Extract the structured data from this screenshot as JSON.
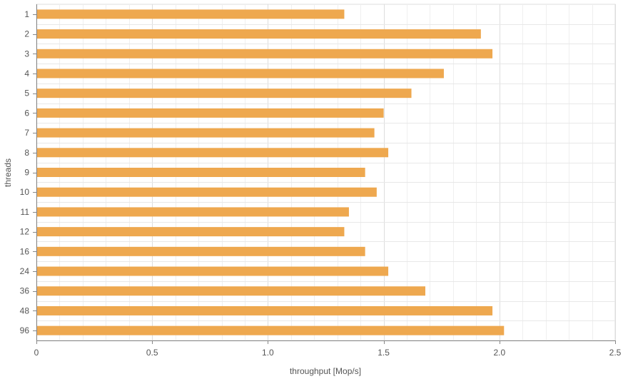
{
  "chart_data": {
    "type": "bar",
    "orientation": "horizontal",
    "categories": [
      "1",
      "2",
      "3",
      "4",
      "5",
      "6",
      "7",
      "8",
      "9",
      "10",
      "11",
      "12",
      "16",
      "24",
      "36",
      "48",
      "96"
    ],
    "series": [
      {
        "values": [
          1.33,
          1.92,
          1.97,
          1.76,
          1.62,
          1.5,
          1.46,
          1.52,
          1.42,
          1.47,
          1.35,
          1.33,
          1.42,
          1.52,
          1.68,
          1.97,
          2.02
        ],
        "color": "#eea84f"
      }
    ],
    "xlabel": "throughput [Mop/s]",
    "ylabel": "threads",
    "xlim": [
      0,
      2.5
    ],
    "xticks": [
      "0",
      "0.5",
      "1.0",
      "1.5",
      "2.0",
      "2.5"
    ],
    "grid": true,
    "legend": "none"
  }
}
